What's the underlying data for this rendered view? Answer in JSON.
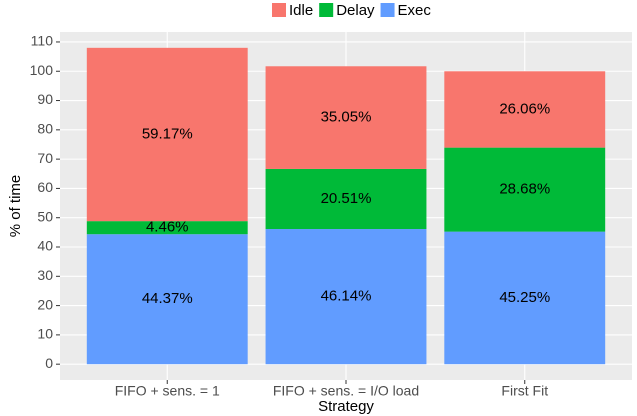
{
  "chart_data": {
    "type": "stacked_bar",
    "x_label": "Strategy",
    "y_label": "% of time",
    "categories": [
      "FIFO + sens. = 1",
      "FIFO + sens. = I/O load",
      "First Fit"
    ],
    "series": [
      {
        "name": "Idle",
        "color": "#F8766D",
        "values": [
          59.17,
          35.05,
          26.06
        ],
        "value_labels": [
          "59.17%",
          "35.05%",
          "26.06%"
        ]
      },
      {
        "name": "Delay",
        "color": "#00BA38",
        "values": [
          4.46,
          20.51,
          28.68
        ],
        "value_labels": [
          "4.46%",
          "20.51%",
          "28.68%"
        ]
      },
      {
        "name": "Exec",
        "color": "#619CFF",
        "values": [
          44.37,
          46.14,
          45.25
        ],
        "value_labels": [
          "44.37%",
          "46.14%",
          "45.25%"
        ]
      }
    ],
    "ylim": [
      -5.4,
      113.4
    ],
    "yticks": [
      0,
      10,
      20,
      30,
      40,
      50,
      60,
      70,
      80,
      90,
      100,
      110
    ],
    "grid": true,
    "legend": "top"
  }
}
